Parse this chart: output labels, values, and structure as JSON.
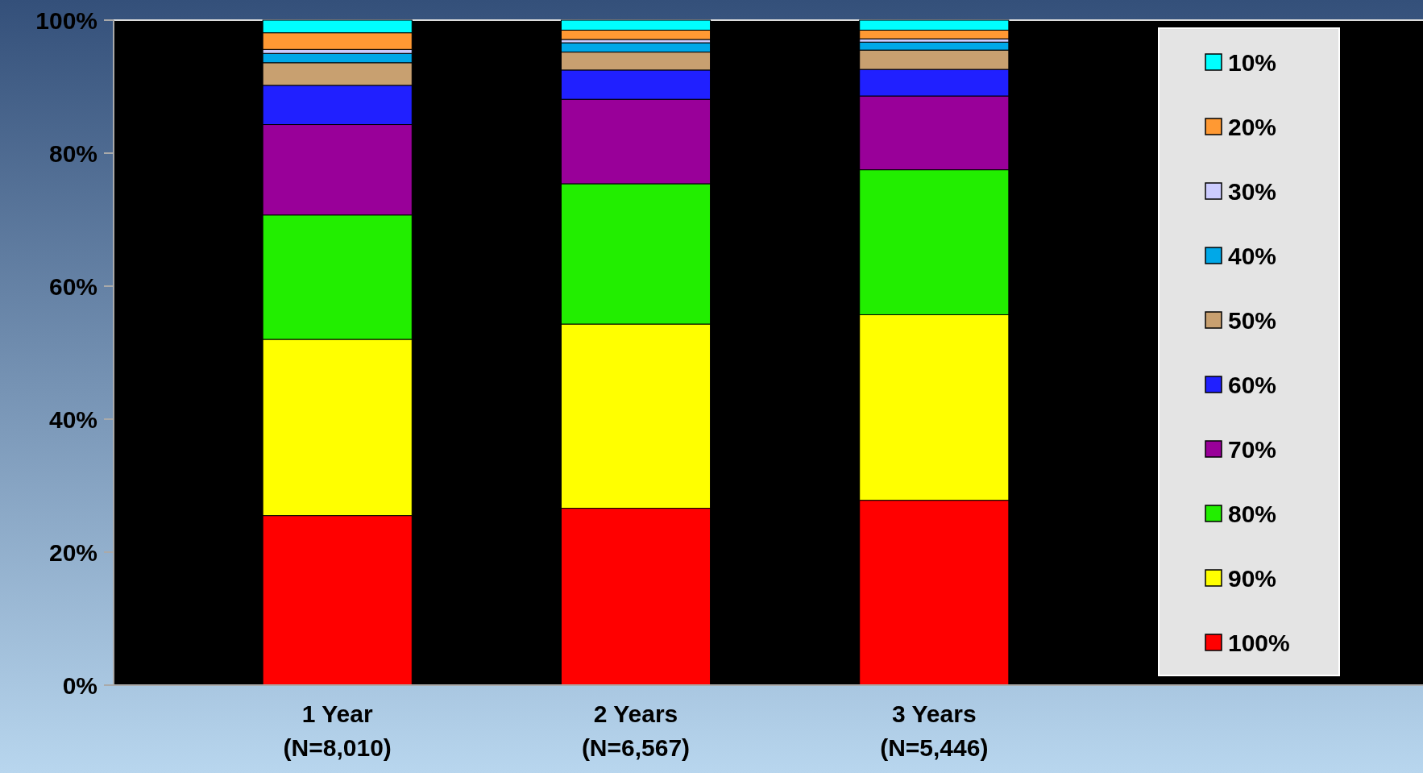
{
  "chart_data": {
    "type": "bar",
    "stacked": true,
    "categories": [
      "1 Year\n(N=8,010)",
      "2 Years\n(N=6,567)",
      "3 Years\n(N=5,446)"
    ],
    "series": [
      {
        "name": "100%",
        "color": "#ff0000",
        "values": [
          25.5,
          26.6,
          27.8
        ]
      },
      {
        "name": "90%",
        "color": "#ffff00",
        "values": [
          26.5,
          27.7,
          27.9
        ]
      },
      {
        "name": "80%",
        "color": "#22ee00",
        "values": [
          18.7,
          21.1,
          21.8
        ]
      },
      {
        "name": "70%",
        "color": "#990099",
        "values": [
          13.6,
          12.7,
          11.1
        ]
      },
      {
        "name": "60%",
        "color": "#2020ff",
        "values": [
          5.9,
          4.4,
          4.0
        ]
      },
      {
        "name": "50%",
        "color": "#c8a070",
        "values": [
          3.4,
          2.7,
          2.9
        ]
      },
      {
        "name": "40%",
        "color": "#00a8e8",
        "values": [
          1.4,
          1.4,
          1.2
        ]
      },
      {
        "name": "30%",
        "color": "#ccccff",
        "values": [
          0.6,
          0.5,
          0.5
        ]
      },
      {
        "name": "20%",
        "color": "#ff9933",
        "values": [
          2.5,
          1.4,
          1.3
        ]
      },
      {
        "name": "10%",
        "color": "#00ffff",
        "values": [
          1.9,
          1.5,
          1.5
        ]
      }
    ],
    "ylim": [
      0,
      100
    ],
    "yticks": [
      {
        "value": 0,
        "label": "0%"
      },
      {
        "value": 20,
        "label": "20%"
      },
      {
        "value": 40,
        "label": "40%"
      },
      {
        "value": 60,
        "label": "60%"
      },
      {
        "value": 80,
        "label": "80%"
      },
      {
        "value": 100,
        "label": "100%"
      }
    ],
    "grid": false,
    "legend": "right"
  }
}
